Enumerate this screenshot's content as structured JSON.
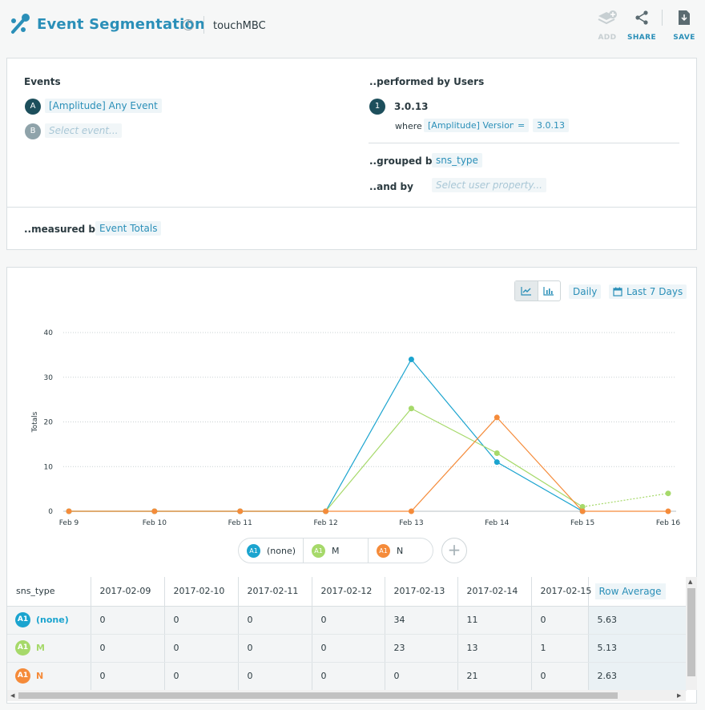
{
  "header": {
    "title": "Event Segmentation",
    "project": "touchMBC",
    "tools": {
      "add": "ADD",
      "share": "SHARE",
      "save": "SAVE"
    }
  },
  "events": {
    "label": "Events",
    "items": [
      {
        "badge": "A",
        "name": "[Amplitude] Any Event"
      },
      {
        "badge": "B",
        "placeholder": "Select event..."
      }
    ]
  },
  "users": {
    "label": "..performed by Users",
    "segment_badge": "1",
    "segment_name": "3.0.13",
    "where_label": "where",
    "where_prop": "[Amplitude] Version",
    "where_op": "=",
    "where_value": "3.0.13",
    "grouped_label": "..grouped by",
    "grouped_value": "sns_type",
    "and_label": "..and by",
    "and_placeholder": "Select user property..."
  },
  "measure": {
    "label": "..measured by",
    "value": "Event Totals"
  },
  "controls": {
    "interval": "Daily",
    "range": "Last 7 Days"
  },
  "colors": {
    "none": "#1ba4cf",
    "M": "#a6d96a",
    "N": "#f58b3a",
    "accent": "#2a8fb8"
  },
  "chart_data": {
    "type": "line",
    "x": [
      "Feb 9",
      "Feb 10",
      "Feb 11",
      "Feb 12",
      "Feb 13",
      "Feb 14",
      "Feb 15",
      "Feb 16"
    ],
    "ylabel": "Totals",
    "ylim": [
      0,
      40
    ],
    "yticks": [
      0,
      10,
      20,
      30,
      40
    ],
    "grid": true,
    "series": [
      {
        "name": "(none)",
        "color": "#1ba4cf",
        "values": [
          0,
          0,
          0,
          0,
          34,
          11,
          0,
          null
        ]
      },
      {
        "name": "M",
        "color": "#a6d96a",
        "values": [
          0,
          0,
          0,
          0,
          23,
          13,
          1,
          4
        ]
      },
      {
        "name": "N",
        "color": "#f58b3a",
        "values": [
          0,
          0,
          0,
          0,
          0,
          21,
          0,
          0
        ]
      }
    ]
  },
  "legend": [
    {
      "badge": "A1",
      "name": "(none)"
    },
    {
      "badge": "A1",
      "name": "M"
    },
    {
      "badge": "A1",
      "name": "N"
    }
  ],
  "table": {
    "first_header": "sns_type",
    "columns": [
      "2017-02-09",
      "2017-02-10",
      "2017-02-11",
      "2017-02-12",
      "2017-02-13",
      "2017-02-14",
      "2017-02-15"
    ],
    "avg_header": "Row Average",
    "rows": [
      {
        "badge": "A1",
        "label": "(none)",
        "values": [
          "0",
          "0",
          "0",
          "0",
          "34",
          "11",
          "0"
        ],
        "avg": "5.63"
      },
      {
        "badge": "A1",
        "label": "M",
        "values": [
          "0",
          "0",
          "0",
          "0",
          "23",
          "13",
          "1"
        ],
        "avg": "5.13"
      },
      {
        "badge": "A1",
        "label": "N",
        "values": [
          "0",
          "0",
          "0",
          "0",
          "0",
          "21",
          "0"
        ],
        "avg": "2.63"
      }
    ]
  }
}
